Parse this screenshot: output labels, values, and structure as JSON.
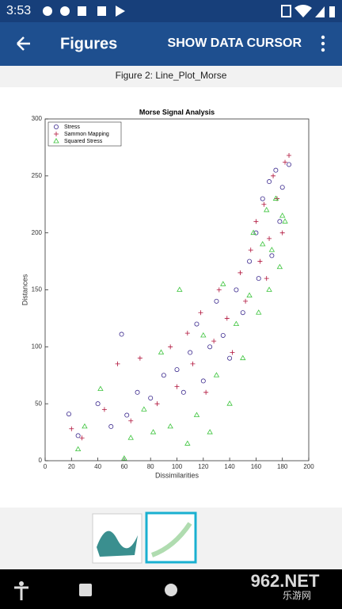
{
  "status_bar": {
    "time": "3:53"
  },
  "app_bar": {
    "title": "Figures",
    "action": "SHOW DATA CURSOR"
  },
  "figure_caption": "Figure 2: Line_Plot_Morse",
  "watermark": {
    "brand": "962.NET",
    "name": "乐游网"
  },
  "chart_data": {
    "type": "scatter",
    "title": "Morse Signal Analysis",
    "x_label": "Dissimilarities",
    "y_label": "Distances",
    "xlim": [
      0,
      200
    ],
    "ylim": [
      0,
      300
    ],
    "xticks": [
      0,
      20,
      40,
      60,
      80,
      100,
      120,
      140,
      160,
      180,
      200
    ],
    "yticks": [
      0,
      50,
      100,
      150,
      200,
      250,
      300
    ],
    "legend": "upper left",
    "series": [
      {
        "name": "Stress",
        "color": "#3d2b8f",
        "marker": "circle",
        "x": [
          18,
          25,
          40,
          50,
          58,
          62,
          70,
          80,
          90,
          100,
          105,
          110,
          115,
          120,
          125,
          130,
          135,
          140,
          145,
          150,
          155,
          160,
          162,
          165,
          170,
          172,
          175,
          178,
          180,
          185
        ],
        "y": [
          41,
          22,
          50,
          30,
          111,
          40,
          60,
          55,
          75,
          80,
          60,
          95,
          120,
          70,
          100,
          140,
          110,
          90,
          150,
          130,
          175,
          200,
          160,
          230,
          245,
          180,
          255,
          210,
          240,
          260
        ]
      },
      {
        "name": "Sammon Mapping",
        "color": "#b0123a",
        "marker": "plus",
        "x": [
          20,
          28,
          45,
          55,
          65,
          72,
          85,
          95,
          100,
          108,
          112,
          118,
          122,
          128,
          132,
          138,
          142,
          148,
          152,
          156,
          160,
          163,
          166,
          170,
          173,
          176,
          180,
          182,
          185,
          168
        ],
        "y": [
          28,
          20,
          45,
          85,
          35,
          90,
          50,
          100,
          65,
          112,
          85,
          130,
          60,
          105,
          150,
          125,
          95,
          165,
          140,
          185,
          210,
          175,
          225,
          195,
          250,
          230,
          200,
          262,
          268,
          160
        ]
      },
      {
        "name": "Squared Stress",
        "color": "#3cc43c",
        "marker": "triangle",
        "x": [
          25,
          30,
          42,
          60,
          65,
          75,
          82,
          88,
          95,
          102,
          108,
          115,
          120,
          125,
          130,
          135,
          140,
          145,
          150,
          155,
          158,
          162,
          165,
          168,
          170,
          172,
          175,
          178,
          180,
          182
        ],
        "y": [
          10,
          30,
          63,
          2,
          20,
          45,
          25,
          95,
          30,
          150,
          15,
          40,
          110,
          25,
          75,
          155,
          50,
          120,
          90,
          145,
          200,
          130,
          190,
          220,
          150,
          185,
          230,
          170,
          215,
          210
        ]
      }
    ]
  }
}
